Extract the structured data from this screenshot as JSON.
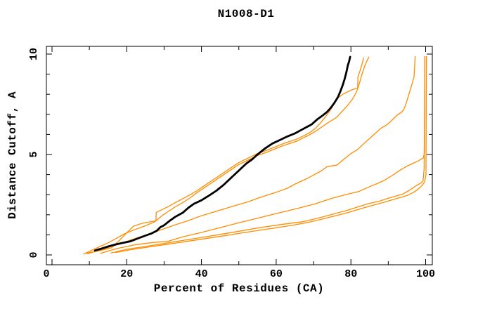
{
  "page": {
    "background": "#ffffff"
  },
  "chart_data": {
    "type": "line",
    "title": "N1008-D1",
    "xlabel": "Percent of Residues (CA)",
    "ylabel": "Distance Cutoff, A",
    "xlim": [
      0,
      100
    ],
    "ylim": [
      0,
      10
    ],
    "x_major_ticks": [
      0,
      20,
      40,
      60,
      80,
      100
    ],
    "x_minor_ticks": [
      10,
      30,
      50,
      70,
      90
    ],
    "y_major_ticks": [
      0,
      5,
      10
    ],
    "y_minor_ticks": [
      1,
      2,
      3,
      4,
      6,
      7,
      8,
      9
    ],
    "grid": false,
    "legend": "none",
    "axis_color": "#000000",
    "accent_color": "#ff8c00",
    "series": [
      {
        "name": "orange-curve-1",
        "color": "#ff8c00",
        "width": 1.3,
        "points": [
          [
            9.5,
            0.06
          ],
          [
            14,
            0.3
          ],
          [
            18,
            0.55
          ],
          [
            22,
            0.8
          ],
          [
            26,
            1.05
          ],
          [
            29.4,
            1.27
          ],
          [
            33,
            1.5
          ],
          [
            36,
            1.68
          ],
          [
            40,
            1.95
          ],
          [
            44,
            2.18
          ],
          [
            48,
            2.4
          ],
          [
            52,
            2.62
          ],
          [
            56,
            2.88
          ],
          [
            60,
            3.12
          ],
          [
            63,
            3.32
          ],
          [
            65.1,
            3.53
          ],
          [
            68,
            3.78
          ],
          [
            70,
            3.98
          ],
          [
            72,
            4.18
          ],
          [
            73.7,
            4.4
          ],
          [
            76.2,
            4.47
          ],
          [
            78,
            4.75
          ],
          [
            80,
            5.05
          ],
          [
            81.8,
            5.25
          ],
          [
            83.5,
            5.55
          ],
          [
            85,
            5.8
          ],
          [
            86.5,
            6.05
          ],
          [
            88,
            6.3
          ],
          [
            89.4,
            6.45
          ],
          [
            90.5,
            6.62
          ],
          [
            91.5,
            6.8
          ],
          [
            92.5,
            6.98
          ],
          [
            93.5,
            7.1
          ],
          [
            94.1,
            7.22
          ],
          [
            94.7,
            7.5
          ],
          [
            95.2,
            7.8
          ],
          [
            95.7,
            8.1
          ],
          [
            96.1,
            8.35
          ],
          [
            96.5,
            8.6
          ],
          [
            96.9,
            8.88
          ],
          [
            97,
            9.2
          ],
          [
            97.1,
            9.55
          ],
          [
            97.2,
            9.88
          ]
        ]
      },
      {
        "name": "orange-curve-2",
        "color": "#ff8c00",
        "width": 1.3,
        "points": [
          [
            13,
            0.08
          ],
          [
            17,
            0.3
          ],
          [
            22,
            0.5
          ],
          [
            27,
            0.62
          ],
          [
            31,
            0.68
          ],
          [
            35,
            0.9
          ],
          [
            40,
            1.12
          ],
          [
            45,
            1.36
          ],
          [
            50,
            1.6
          ],
          [
            55,
            1.83
          ],
          [
            60,
            2.06
          ],
          [
            65,
            2.28
          ],
          [
            70,
            2.52
          ],
          [
            75,
            2.82
          ],
          [
            79,
            3.02
          ],
          [
            82,
            3.15
          ],
          [
            85,
            3.4
          ],
          [
            87,
            3.55
          ],
          [
            89,
            3.72
          ],
          [
            91,
            3.95
          ],
          [
            93,
            4.2
          ],
          [
            95,
            4.42
          ],
          [
            96.5,
            4.55
          ],
          [
            98,
            4.68
          ],
          [
            99.3,
            4.82
          ],
          [
            99.7,
            5.07
          ],
          [
            99.8,
            9.88
          ]
        ]
      },
      {
        "name": "orange-curve-3",
        "color": "#ff8c00",
        "width": 1.3,
        "points": [
          [
            15.8,
            0.1
          ],
          [
            20,
            0.28
          ],
          [
            25,
            0.42
          ],
          [
            30,
            0.57
          ],
          [
            35,
            0.72
          ],
          [
            40,
            0.87
          ],
          [
            45,
            1.02
          ],
          [
            50,
            1.18
          ],
          [
            55,
            1.34
          ],
          [
            60,
            1.48
          ],
          [
            64,
            1.58
          ],
          [
            67,
            1.65
          ],
          [
            70,
            1.78
          ],
          [
            73,
            1.92
          ],
          [
            76,
            2.07
          ],
          [
            79,
            2.22
          ],
          [
            82,
            2.4
          ],
          [
            85,
            2.57
          ],
          [
            87.7,
            2.68
          ],
          [
            90,
            2.82
          ],
          [
            92,
            2.93
          ],
          [
            93.9,
            3.03
          ],
          [
            95.5,
            3.2
          ],
          [
            96.8,
            3.36
          ],
          [
            97.6,
            3.46
          ],
          [
            98.6,
            3.57
          ],
          [
            99.3,
            3.68
          ],
          [
            99.6,
            4.3
          ],
          [
            99.8,
            9.88
          ]
        ]
      },
      {
        "name": "orange-curve-4",
        "color": "#ff8c00",
        "width": 1.3,
        "points": [
          [
            17,
            0.12
          ],
          [
            21,
            0.26
          ],
          [
            26,
            0.4
          ],
          [
            31,
            0.53
          ],
          [
            36,
            0.67
          ],
          [
            41,
            0.81
          ],
          [
            46,
            0.95
          ],
          [
            51,
            1.1
          ],
          [
            56,
            1.24
          ],
          [
            61,
            1.38
          ],
          [
            65,
            1.5
          ],
          [
            68,
            1.6
          ],
          [
            71,
            1.72
          ],
          [
            74,
            1.86
          ],
          [
            77,
            2.0
          ],
          [
            80,
            2.15
          ],
          [
            83,
            2.32
          ],
          [
            86,
            2.48
          ],
          [
            88.5,
            2.6
          ],
          [
            91,
            2.74
          ],
          [
            93,
            2.85
          ],
          [
            95.2,
            2.97
          ],
          [
            96.8,
            3.12
          ],
          [
            98,
            3.28
          ],
          [
            99,
            3.45
          ],
          [
            99.7,
            3.62
          ],
          [
            100.1,
            4.0
          ],
          [
            100.2,
            9.88
          ]
        ]
      },
      {
        "name": "orange-curve-5",
        "color": "#ff8c00",
        "width": 1.3,
        "points": [
          [
            8.5,
            0.05
          ],
          [
            10.5,
            0.22
          ],
          [
            12.4,
            0.38
          ],
          [
            15,
            0.6
          ],
          [
            17,
            0.8
          ],
          [
            19.4,
            1.05
          ],
          [
            22,
            1.25
          ],
          [
            25,
            1.45
          ],
          [
            27.5,
            1.65
          ],
          [
            29.4,
            1.95
          ],
          [
            31,
            2.15
          ],
          [
            33,
            2.4
          ],
          [
            35,
            2.6
          ],
          [
            37,
            2.85
          ],
          [
            38.8,
            3.1
          ],
          [
            40,
            3.25
          ],
          [
            42,
            3.5
          ],
          [
            44,
            3.75
          ],
          [
            46,
            4.0
          ],
          [
            48,
            4.25
          ],
          [
            50,
            4.5
          ],
          [
            52.5,
            4.72
          ],
          [
            55,
            4.95
          ],
          [
            57.6,
            5.12
          ],
          [
            60,
            5.3
          ],
          [
            62,
            5.45
          ],
          [
            64,
            5.57
          ],
          [
            65.7,
            5.68
          ],
          [
            67,
            5.8
          ],
          [
            68.9,
            5.98
          ],
          [
            70.5,
            6.15
          ],
          [
            72.6,
            6.42
          ],
          [
            74,
            6.6
          ],
          [
            76.2,
            6.85
          ],
          [
            77.5,
            7.12
          ],
          [
            79,
            7.42
          ],
          [
            80.5,
            7.78
          ],
          [
            81.5,
            8.12
          ],
          [
            82.3,
            8.55
          ],
          [
            82.8,
            8.9
          ],
          [
            83.4,
            9.25
          ],
          [
            84,
            9.55
          ],
          [
            84.8,
            9.85
          ]
        ]
      },
      {
        "name": "orange-curve-6",
        "color": "#ff8c00",
        "width": 1.3,
        "points": [
          [
            9,
            0.08
          ],
          [
            13,
            0.22
          ],
          [
            16,
            0.36
          ],
          [
            18,
            0.72
          ],
          [
            20,
            1.1
          ],
          [
            21.8,
            1.43
          ],
          [
            24,
            1.57
          ],
          [
            26,
            1.64
          ],
          [
            27.8,
            1.7
          ],
          [
            27.9,
            2.12
          ],
          [
            29.4,
            2.25
          ],
          [
            31,
            2.4
          ],
          [
            33,
            2.6
          ],
          [
            35,
            2.8
          ],
          [
            37,
            3.0
          ],
          [
            38.8,
            3.2
          ],
          [
            40,
            3.35
          ],
          [
            42,
            3.6
          ],
          [
            44,
            3.85
          ],
          [
            46,
            4.1
          ],
          [
            48,
            4.35
          ],
          [
            50,
            4.6
          ],
          [
            52.5,
            4.82
          ],
          [
            55,
            5.05
          ],
          [
            57.6,
            5.22
          ],
          [
            60,
            5.4
          ],
          [
            62,
            5.55
          ],
          [
            64,
            5.67
          ],
          [
            65.7,
            5.78
          ],
          [
            67,
            5.9
          ],
          [
            68.9,
            6.08
          ],
          [
            70.5,
            6.3
          ],
          [
            72,
            6.6
          ],
          [
            73.5,
            6.95
          ],
          [
            74.8,
            7.3
          ],
          [
            75.8,
            7.6
          ],
          [
            76.4,
            7.8
          ],
          [
            78,
            8.02
          ],
          [
            80,
            8.2
          ],
          [
            81.8,
            8.32
          ],
          [
            81.9,
            8.88
          ],
          [
            82.4,
            9.15
          ],
          [
            82.9,
            9.45
          ],
          [
            83.4,
            9.8
          ]
        ]
      },
      {
        "name": "black-curve",
        "color": "#000000",
        "width": 2.8,
        "points": [
          [
            11.5,
            0.22
          ],
          [
            13,
            0.3
          ],
          [
            15,
            0.42
          ],
          [
            17,
            0.52
          ],
          [
            19,
            0.6
          ],
          [
            21,
            0.68
          ],
          [
            23,
            0.82
          ],
          [
            25,
            0.96
          ],
          [
            26.5,
            1.06
          ],
          [
            28,
            1.2
          ],
          [
            29,
            1.38
          ],
          [
            30,
            1.48
          ],
          [
            31.5,
            1.7
          ],
          [
            33,
            1.9
          ],
          [
            35,
            2.1
          ],
          [
            36.5,
            2.35
          ],
          [
            38,
            2.55
          ],
          [
            40,
            2.72
          ],
          [
            42,
            2.95
          ],
          [
            44,
            3.2
          ],
          [
            46,
            3.5
          ],
          [
            48,
            3.85
          ],
          [
            50,
            4.2
          ],
          [
            52,
            4.55
          ],
          [
            53.5,
            4.75
          ],
          [
            55,
            5.0
          ],
          [
            57,
            5.3
          ],
          [
            59,
            5.55
          ],
          [
            61,
            5.72
          ],
          [
            63,
            5.9
          ],
          [
            65,
            6.05
          ],
          [
            66.5,
            6.2
          ],
          [
            68,
            6.35
          ],
          [
            69.5,
            6.5
          ],
          [
            71,
            6.75
          ],
          [
            72.5,
            6.95
          ],
          [
            73.5,
            7.1
          ],
          [
            74.5,
            7.3
          ],
          [
            75.5,
            7.55
          ],
          [
            76.5,
            7.85
          ],
          [
            77.2,
            8.15
          ],
          [
            77.8,
            8.45
          ],
          [
            78.3,
            8.75
          ],
          [
            78.8,
            9.1
          ],
          [
            79.2,
            9.45
          ],
          [
            79.5,
            9.62
          ],
          [
            79.8,
            9.86
          ]
        ]
      }
    ]
  }
}
